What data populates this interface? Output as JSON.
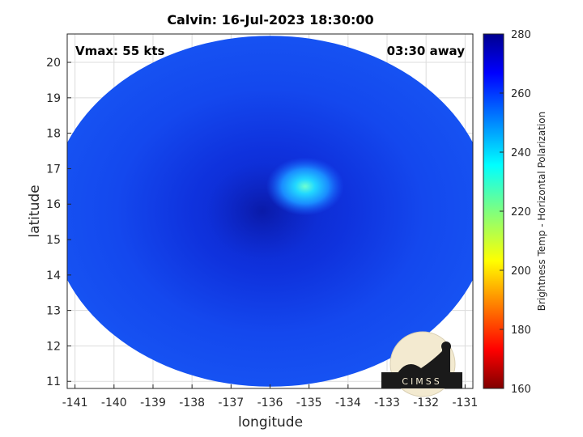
{
  "chart_data": {
    "type": "heatmap",
    "title": "Calvin: 16-Jul-2023 18:30:00",
    "xlabel": "longitude",
    "ylabel": "latitude",
    "xlim": [
      -141.2,
      -130.8
    ],
    "ylim": [
      10.8,
      20.8
    ],
    "x_ticks": [
      -141,
      -140,
      -139,
      -138,
      -137,
      -136,
      -135,
      -134,
      -133,
      -132,
      -131
    ],
    "y_ticks": [
      11,
      12,
      13,
      14,
      15,
      16,
      17,
      18,
      19,
      20
    ],
    "grid": true,
    "annotations": {
      "top_left": "Vmax: 55 kts",
      "top_right": "03:30 away"
    },
    "colorbar": {
      "label": "Brightness Temp - Horizontal Polarization",
      "range": [
        160,
        280
      ],
      "ticks": [
        160,
        180,
        200,
        220,
        240,
        260,
        280
      ],
      "colormap": "jet"
    },
    "swath": {
      "center_lon": -136,
      "center_lat": 15.8,
      "lon_radius": 5.65,
      "lat_radius": 4.95,
      "background_value": 262
    },
    "features": [
      {
        "name": "warm-core",
        "lon": -135.1,
        "lat": 16.5,
        "value": 236
      },
      {
        "name": "eye",
        "lon": -136.2,
        "lat": 15.8,
        "value": 270
      }
    ],
    "logo_text": "CIMSS"
  }
}
